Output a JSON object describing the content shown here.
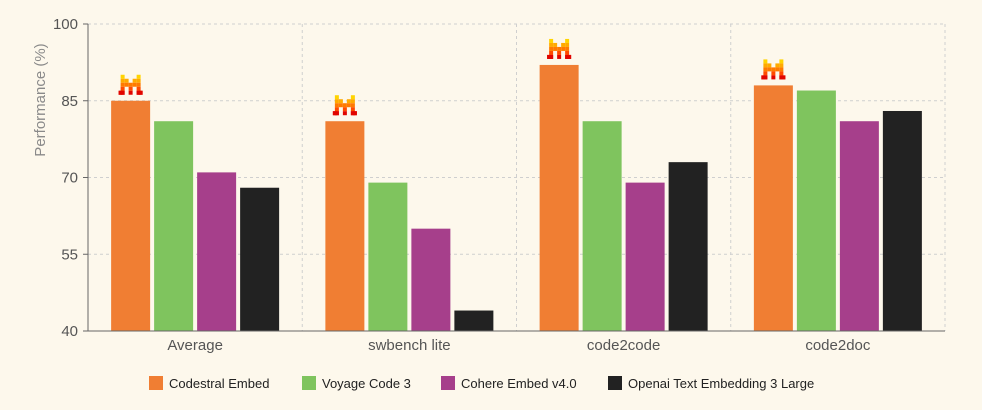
{
  "chart_data": {
    "type": "bar",
    "categories": [
      "Average",
      "swbench lite",
      "code2code",
      "code2doc"
    ],
    "series": [
      {
        "name": "Codestral Embed",
        "color": "#f07e33",
        "values": [
          85,
          81,
          92,
          88
        ]
      },
      {
        "name": "Voyage Code 3",
        "color": "#7fc45e",
        "values": [
          81,
          69,
          81,
          87
        ]
      },
      {
        "name": "Cohere Embed v4.0",
        "color": "#a63f8b",
        "values": [
          71,
          60,
          69,
          81
        ]
      },
      {
        "name": "Openai Text Embedding 3 Large",
        "color": "#222222",
        "values": [
          68,
          44,
          73,
          83
        ]
      }
    ],
    "title": "",
    "xlabel": "",
    "ylabel": "Performance (%)",
    "ylim": [
      40,
      100
    ],
    "yticks": [
      40,
      55,
      70,
      85,
      100
    ],
    "grid": true,
    "legend_position": "bottom",
    "annotations": [
      {
        "category": "Average",
        "series": "Codestral Embed",
        "icon": "mistral-logo-icon"
      },
      {
        "category": "swbench lite",
        "series": "Codestral Embed",
        "icon": "mistral-logo-icon"
      },
      {
        "category": "code2code",
        "series": "Codestral Embed",
        "icon": "mistral-logo-icon"
      },
      {
        "category": "code2doc",
        "series": "Codestral Embed",
        "icon": "mistral-logo-icon"
      }
    ]
  }
}
